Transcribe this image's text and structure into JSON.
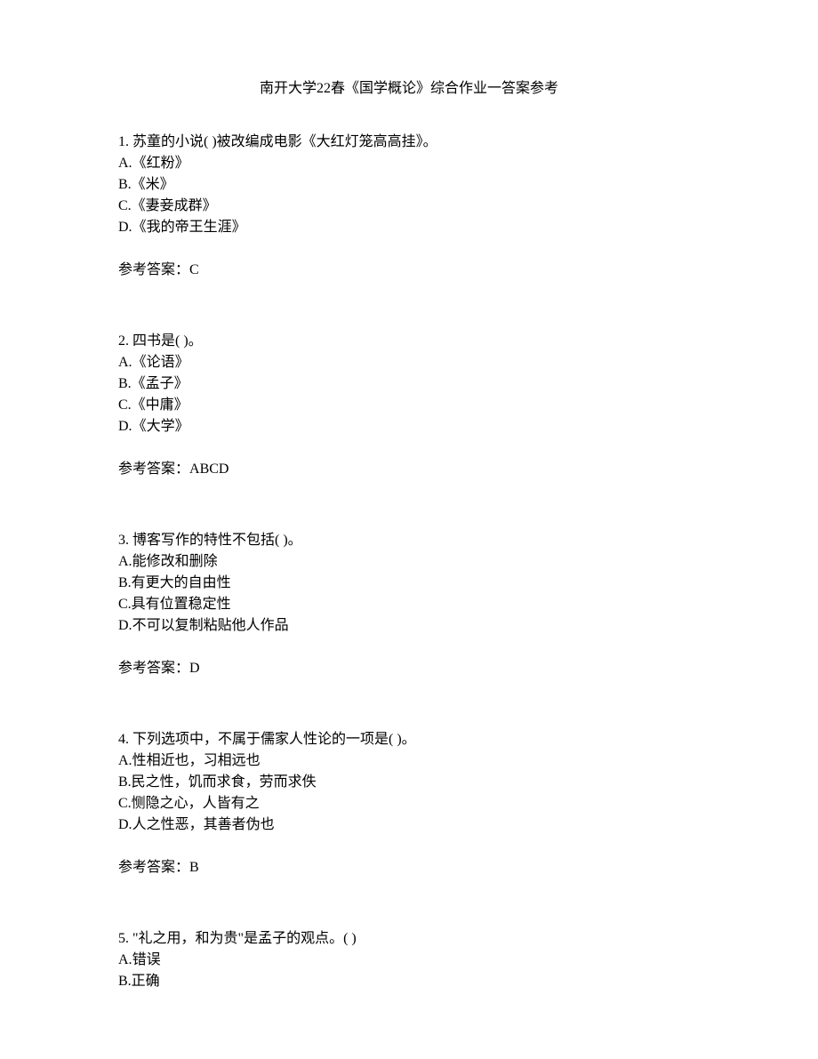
{
  "title": "南开大学22春《国学概论》综合作业一答案参考",
  "questions": [
    {
      "number": "1.",
      "text": "苏童的小说(  )被改编成电影《大红灯笼高高挂》。",
      "options": [
        {
          "label": "A.",
          "text": "《红粉》"
        },
        {
          "label": "B.",
          "text": "《米》"
        },
        {
          "label": "C.",
          "text": "《妻妾成群》"
        },
        {
          "label": "D.",
          "text": "《我的帝王生涯》"
        }
      ],
      "answer_label": "参考答案：",
      "answer": "C"
    },
    {
      "number": "2.",
      "text": "四书是(  )。",
      "options": [
        {
          "label": "A.",
          "text": "《论语》"
        },
        {
          "label": "B.",
          "text": "《孟子》"
        },
        {
          "label": "C.",
          "text": "《中庸》"
        },
        {
          "label": "D.",
          "text": "《大学》"
        }
      ],
      "answer_label": "参考答案：",
      "answer": "ABCD"
    },
    {
      "number": "3.",
      "text": "博客写作的特性不包括(  )。",
      "options": [
        {
          "label": "A.",
          "text": "能修改和删除"
        },
        {
          "label": "B.",
          "text": "有更大的自由性"
        },
        {
          "label": "C.",
          "text": "具有位置稳定性"
        },
        {
          "label": "D.",
          "text": "不可以复制粘贴他人作品"
        }
      ],
      "answer_label": "参考答案：",
      "answer": "D"
    },
    {
      "number": "4.",
      "text": "下列选项中，不属于儒家人性论的一项是(  )。",
      "options": [
        {
          "label": "A.",
          "text": "性相近也，习相远也"
        },
        {
          "label": "B.",
          "text": "民之性，饥而求食，劳而求佚"
        },
        {
          "label": "C.",
          "text": "恻隐之心，人皆有之"
        },
        {
          "label": "D.",
          "text": "人之性恶，其善者伪也"
        }
      ],
      "answer_label": "参考答案：",
      "answer": "B"
    },
    {
      "number": "5.",
      "text": "\"礼之用，和为贵\"是孟子的观点。(  )",
      "options": [
        {
          "label": "A.",
          "text": "错误"
        },
        {
          "label": "B.",
          "text": "正确"
        }
      ],
      "answer_label": "",
      "answer": ""
    }
  ]
}
